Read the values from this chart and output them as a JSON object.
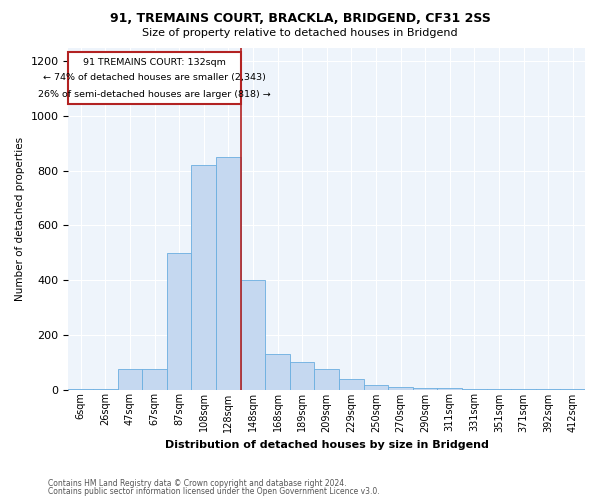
{
  "title1": "91, TREMAINS COURT, BRACKLA, BRIDGEND, CF31 2SS",
  "title2": "Size of property relative to detached houses in Bridgend",
  "xlabel": "Distribution of detached houses by size in Bridgend",
  "ylabel": "Number of detached properties",
  "footnote1": "Contains HM Land Registry data © Crown copyright and database right 2024.",
  "footnote2": "Contains public sector information licensed under the Open Government Licence v3.0.",
  "annotation_line1": "91 TREMAINS COURT: 132sqm",
  "annotation_line2": "← 74% of detached houses are smaller (2,343)",
  "annotation_line3": "26% of semi-detached houses are larger (818) →",
  "bar_labels": [
    "6sqm",
    "26sqm",
    "47sqm",
    "67sqm",
    "87sqm",
    "108sqm",
    "128sqm",
    "148sqm",
    "168sqm",
    "189sqm",
    "209sqm",
    "229sqm",
    "250sqm",
    "270sqm",
    "290sqm",
    "311sqm",
    "331sqm",
    "351sqm",
    "371sqm",
    "392sqm",
    "412sqm"
  ],
  "bar_values": [
    3,
    3,
    75,
    75,
    500,
    820,
    850,
    400,
    130,
    100,
    75,
    40,
    15,
    10,
    5,
    5,
    3,
    3,
    3,
    3,
    3
  ],
  "bar_color": "#c5d8f0",
  "bar_edge_color": "#6aaee0",
  "red_line_index": 6,
  "red_line_color": "#b22222",
  "background_color": "#eef4fb",
  "annotation_box_color": "#ffffff",
  "annotation_box_edge": "#b22222",
  "ylim": [
    0,
    1250
  ],
  "yticks": [
    0,
    200,
    400,
    600,
    800,
    1000,
    1200
  ],
  "figwidth": 6.0,
  "figheight": 5.0,
  "dpi": 100
}
